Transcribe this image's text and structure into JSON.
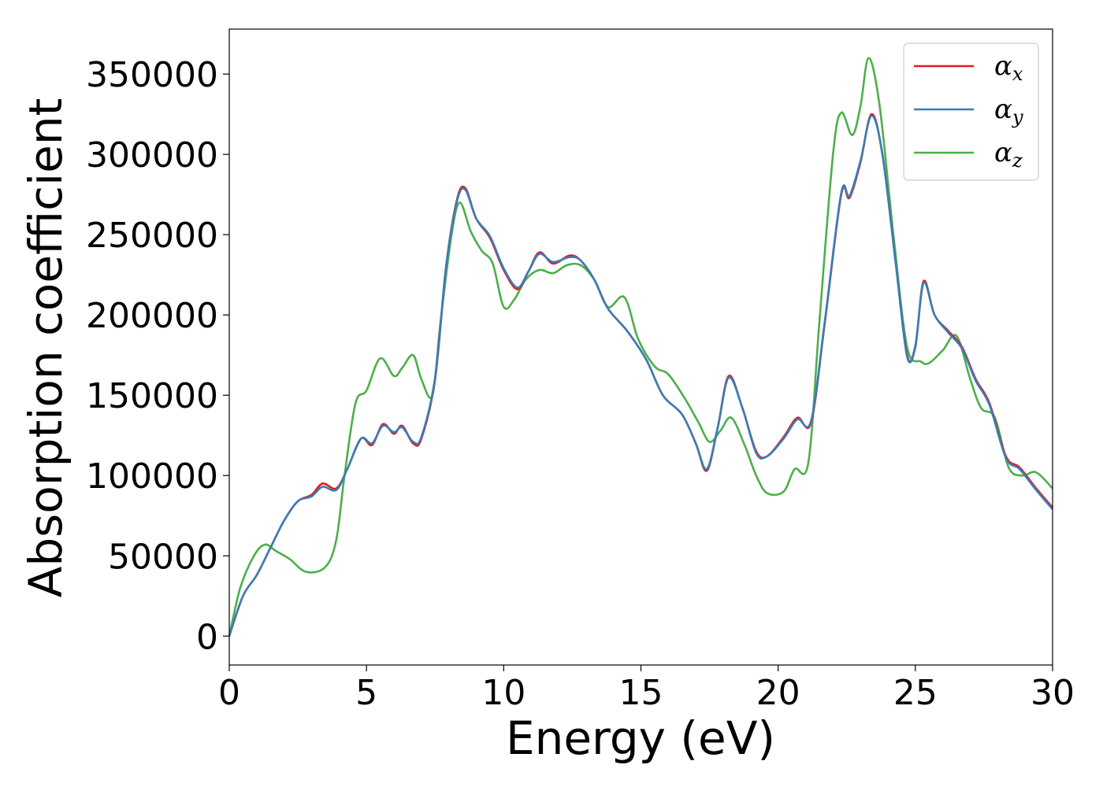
{
  "chart_data": {
    "type": "line",
    "title": "",
    "xlabel": "Energy (eV)",
    "ylabel": "Absorption coefficient",
    "xlim": [
      0,
      30
    ],
    "ylim": [
      -18000,
      378000
    ],
    "xticks": [
      "0",
      "5",
      "10",
      "15",
      "20",
      "25",
      "30"
    ],
    "yticks": [
      "0",
      "50000",
      "100000",
      "150000",
      "200000",
      "250000",
      "300000",
      "350000"
    ],
    "grid": false,
    "legend_position": "top-right",
    "colors": {
      "x": "#e41a1c",
      "y": "#377eb8",
      "z": "#4daf4a"
    },
    "series": [
      {
        "name": "α_x",
        "legend": {
          "base": "α",
          "sub": "x"
        },
        "color": "#e41a1c",
        "points": [
          [
            0,
            0
          ],
          [
            0.5,
            25000
          ],
          [
            1.0,
            38000
          ],
          [
            1.5,
            55000
          ],
          [
            2.0,
            72000
          ],
          [
            2.5,
            84000
          ],
          [
            3.0,
            88000
          ],
          [
            3.4,
            95000
          ],
          [
            3.9,
            92000
          ],
          [
            4.3,
            104000
          ],
          [
            4.8,
            123000
          ],
          [
            5.2,
            119000
          ],
          [
            5.6,
            132000
          ],
          [
            6.0,
            126000
          ],
          [
            6.3,
            131000
          ],
          [
            6.7,
            120000
          ],
          [
            7.0,
            123000
          ],
          [
            7.5,
            160000
          ],
          [
            7.9,
            230000
          ],
          [
            8.3,
            272000
          ],
          [
            8.6,
            279000
          ],
          [
            9.0,
            260000
          ],
          [
            9.5,
            248000
          ],
          [
            10.0,
            228000
          ],
          [
            10.5,
            216000
          ],
          [
            10.9,
            227000
          ],
          [
            11.3,
            239000
          ],
          [
            11.8,
            232000
          ],
          [
            12.4,
            237000
          ],
          [
            12.8,
            234000
          ],
          [
            13.3,
            222000
          ],
          [
            13.8,
            204000
          ],
          [
            14.5,
            190000
          ],
          [
            15.2,
            172000
          ],
          [
            15.8,
            150000
          ],
          [
            16.5,
            138000
          ],
          [
            17.0,
            120000
          ],
          [
            17.4,
            103000
          ],
          [
            17.8,
            130000
          ],
          [
            18.2,
            162000
          ],
          [
            18.7,
            142000
          ],
          [
            19.2,
            115000
          ],
          [
            19.6,
            112000
          ],
          [
            20.2,
            124000
          ],
          [
            20.7,
            136000
          ],
          [
            21.2,
            133000
          ],
          [
            21.7,
            195000
          ],
          [
            22.3,
            275000
          ],
          [
            22.6,
            273000
          ],
          [
            23.0,
            295000
          ],
          [
            23.4,
            325000
          ],
          [
            23.8,
            300000
          ],
          [
            24.3,
            230000
          ],
          [
            24.7,
            175000
          ],
          [
            25.0,
            180000
          ],
          [
            25.3,
            221000
          ],
          [
            25.7,
            200000
          ],
          [
            26.2,
            190000
          ],
          [
            26.7,
            180000
          ],
          [
            27.2,
            160000
          ],
          [
            27.7,
            145000
          ],
          [
            28.3,
            112000
          ],
          [
            28.8,
            105000
          ],
          [
            29.4,
            92000
          ],
          [
            30.0,
            80000
          ]
        ]
      },
      {
        "name": "α_y",
        "legend": {
          "base": "α",
          "sub": "y"
        },
        "color": "#377eb8",
        "points": [
          [
            0,
            0
          ],
          [
            0.5,
            25000
          ],
          [
            1.0,
            38000
          ],
          [
            1.5,
            55000
          ],
          [
            2.0,
            72000
          ],
          [
            2.5,
            84000
          ],
          [
            3.0,
            87000
          ],
          [
            3.4,
            93000
          ],
          [
            3.9,
            91000
          ],
          [
            4.3,
            104000
          ],
          [
            4.8,
            123000
          ],
          [
            5.2,
            120000
          ],
          [
            5.6,
            131000
          ],
          [
            6.0,
            127000
          ],
          [
            6.3,
            130000
          ],
          [
            6.7,
            121000
          ],
          [
            7.0,
            124000
          ],
          [
            7.5,
            161000
          ],
          [
            7.9,
            230000
          ],
          [
            8.3,
            271000
          ],
          [
            8.6,
            278000
          ],
          [
            9.0,
            260000
          ],
          [
            9.5,
            249000
          ],
          [
            10.0,
            229000
          ],
          [
            10.5,
            217000
          ],
          [
            10.9,
            227000
          ],
          [
            11.3,
            238000
          ],
          [
            11.8,
            233000
          ],
          [
            12.4,
            236000
          ],
          [
            12.8,
            234000
          ],
          [
            13.3,
            222000
          ],
          [
            13.8,
            204000
          ],
          [
            14.5,
            190000
          ],
          [
            15.2,
            172000
          ],
          [
            15.8,
            150000
          ],
          [
            16.5,
            138000
          ],
          [
            17.0,
            120000
          ],
          [
            17.4,
            104000
          ],
          [
            17.8,
            130000
          ],
          [
            18.2,
            161000
          ],
          [
            18.7,
            142000
          ],
          [
            19.2,
            114000
          ],
          [
            19.6,
            112000
          ],
          [
            20.2,
            123000
          ],
          [
            20.7,
            135000
          ],
          [
            21.2,
            134000
          ],
          [
            21.7,
            196000
          ],
          [
            22.3,
            276000
          ],
          [
            22.6,
            274000
          ],
          [
            23.0,
            296000
          ],
          [
            23.4,
            324000
          ],
          [
            23.8,
            300000
          ],
          [
            24.3,
            230000
          ],
          [
            24.7,
            174000
          ],
          [
            25.0,
            181000
          ],
          [
            25.3,
            220000
          ],
          [
            25.7,
            200000
          ],
          [
            26.2,
            189000
          ],
          [
            26.7,
            179000
          ],
          [
            27.2,
            159000
          ],
          [
            27.7,
            144000
          ],
          [
            28.3,
            111000
          ],
          [
            28.8,
            104000
          ],
          [
            29.4,
            91000
          ],
          [
            30.0,
            79000
          ]
        ]
      },
      {
        "name": "α_z",
        "legend": {
          "base": "α",
          "sub": "z"
        },
        "color": "#4daf4a",
        "points": [
          [
            0,
            0
          ],
          [
            0.4,
            30000
          ],
          [
            0.9,
            50000
          ],
          [
            1.3,
            57000
          ],
          [
            1.7,
            53000
          ],
          [
            2.2,
            48000
          ],
          [
            2.8,
            40000
          ],
          [
            3.5,
            43000
          ],
          [
            3.9,
            60000
          ],
          [
            4.2,
            100000
          ],
          [
            4.6,
            145000
          ],
          [
            5.0,
            153000
          ],
          [
            5.5,
            173000
          ],
          [
            6.0,
            162000
          ],
          [
            6.3,
            167000
          ],
          [
            6.7,
            175000
          ],
          [
            7.0,
            160000
          ],
          [
            7.4,
            150000
          ],
          [
            7.7,
            196000
          ],
          [
            8.1,
            250000
          ],
          [
            8.4,
            270000
          ],
          [
            8.8,
            252000
          ],
          [
            9.2,
            240000
          ],
          [
            9.6,
            232000
          ],
          [
            10.0,
            205000
          ],
          [
            10.4,
            210000
          ],
          [
            10.8,
            222000
          ],
          [
            11.3,
            228000
          ],
          [
            11.8,
            226000
          ],
          [
            12.3,
            231000
          ],
          [
            12.8,
            231000
          ],
          [
            13.3,
            222000
          ],
          [
            13.8,
            205000
          ],
          [
            14.4,
            211000
          ],
          [
            14.9,
            185000
          ],
          [
            15.5,
            168000
          ],
          [
            16.0,
            163000
          ],
          [
            16.6,
            148000
          ],
          [
            17.1,
            133000
          ],
          [
            17.5,
            121000
          ],
          [
            17.9,
            128000
          ],
          [
            18.3,
            136000
          ],
          [
            18.8,
            118000
          ],
          [
            19.2,
            100000
          ],
          [
            19.6,
            89000
          ],
          [
            20.2,
            90000
          ],
          [
            20.6,
            104000
          ],
          [
            21.1,
            108000
          ],
          [
            21.5,
            195000
          ],
          [
            22.0,
            300000
          ],
          [
            22.3,
            326000
          ],
          [
            22.7,
            312000
          ],
          [
            23.0,
            330000
          ],
          [
            23.3,
            360000
          ],
          [
            23.7,
            330000
          ],
          [
            24.2,
            250000
          ],
          [
            24.7,
            180000
          ],
          [
            25.2,
            171000
          ],
          [
            25.5,
            170000
          ],
          [
            26.0,
            178000
          ],
          [
            26.5,
            187000
          ],
          [
            27.0,
            160000
          ],
          [
            27.4,
            142000
          ],
          [
            27.9,
            136000
          ],
          [
            28.4,
            105000
          ],
          [
            28.9,
            100000
          ],
          [
            29.4,
            102000
          ],
          [
            30.0,
            92000
          ]
        ]
      }
    ]
  }
}
